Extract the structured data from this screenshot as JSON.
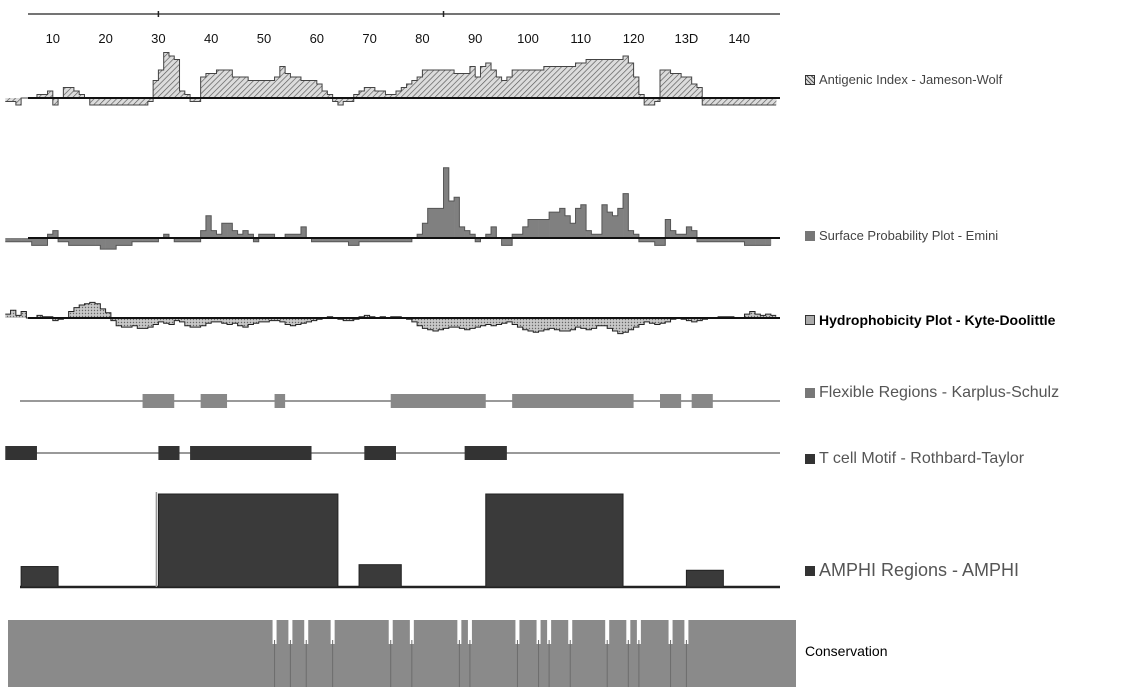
{
  "colors": {
    "hatch_fg": "#555555",
    "hatch_bg": "#dcdcdc",
    "surface": "#808080",
    "hydro": "#a8a8a8",
    "flex": "#888888",
    "tcell": "#333333",
    "amphi": "#3a3a3a",
    "conservation": "#8a8a8a"
  },
  "chart_data": {
    "type": "area",
    "x_axis": {
      "range": [
        1,
        146
      ],
      "ticks": [
        10,
        20,
        30,
        40,
        50,
        60,
        70,
        80,
        90,
        100,
        110,
        120,
        130,
        140
      ],
      "tick_labels": [
        "10",
        "20",
        "30",
        "40",
        "50",
        "60",
        "70",
        "80",
        "90",
        "100",
        "110",
        "120",
        "13D",
        "140"
      ]
    },
    "tracks": [
      {
        "id": "antigenic",
        "legend": "Antigenic Index - Jameson-Wolf",
        "style": "hatch",
        "values": [
          -0.1,
          -0.1,
          -0.2,
          0,
          0,
          0,
          0.1,
          0.1,
          0.2,
          -0.2,
          0,
          0.3,
          0.3,
          0.2,
          0.1,
          0,
          -0.2,
          -0.2,
          -0.2,
          -0.2,
          -0.2,
          -0.2,
          -0.2,
          -0.2,
          -0.2,
          -0.2,
          -0.2,
          -0.1,
          0.5,
          0.8,
          1.3,
          1.2,
          1.1,
          0.2,
          0.1,
          -0.1,
          -0.1,
          0.6,
          0.7,
          0.7,
          0.8,
          0.8,
          0.8,
          0.6,
          0.6,
          0.6,
          0.5,
          0.5,
          0.5,
          0.5,
          0.5,
          0.6,
          0.9,
          0.7,
          0.6,
          0.6,
          0.5,
          0.5,
          0.5,
          0.4,
          0.2,
          0.1,
          -0.1,
          -0.2,
          -0.1,
          -0.1,
          0.1,
          0.2,
          0.3,
          0.3,
          0.2,
          0.2,
          0.1,
          0.1,
          0.2,
          0.3,
          0.4,
          0.5,
          0.6,
          0.8,
          0.8,
          0.8,
          0.8,
          0.8,
          0.8,
          0.7,
          0.7,
          0.7,
          0.9,
          0.6,
          0.9,
          1.0,
          0.8,
          0.6,
          0.5,
          0.6,
          0.8,
          0.8,
          0.8,
          0.8,
          0.8,
          0.8,
          0.9,
          0.9,
          0.9,
          0.9,
          0.9,
          0.9,
          1.0,
          1.0,
          1.1,
          1.1,
          1.1,
          1.1,
          1.1,
          1.1,
          1.1,
          1.2,
          1.0,
          0.6,
          0.1,
          -0.2,
          -0.2,
          -0.1,
          0.8,
          0.8,
          0.7,
          0.7,
          0.6,
          0.6,
          0.4,
          0.3,
          -0.2,
          -0.2,
          -0.2,
          -0.2,
          -0.2,
          -0.2,
          -0.2,
          -0.2,
          -0.2,
          -0.2,
          -0.2,
          -0.2,
          -0.2,
          -0.2
        ]
      },
      {
        "id": "surface",
        "legend": "Surface Probability Plot - Emini",
        "style": "grey",
        "values": [
          -0.1,
          -0.1,
          -0.1,
          -0.1,
          -0.1,
          -0.2,
          -0.2,
          -0.2,
          0.1,
          0.2,
          -0.1,
          -0.1,
          -0.2,
          -0.2,
          -0.2,
          -0.2,
          -0.2,
          -0.2,
          -0.3,
          -0.3,
          -0.3,
          -0.2,
          -0.2,
          -0.2,
          -0.1,
          -0.1,
          -0.1,
          -0.1,
          -0.1,
          0,
          0.1,
          0,
          -0.1,
          -0.1,
          -0.1,
          -0.1,
          -0.1,
          0.2,
          0.6,
          0.2,
          0.1,
          0.4,
          0.4,
          0.2,
          0.1,
          0.2,
          0.1,
          -0.1,
          0.1,
          0.1,
          0.1,
          0,
          0,
          0.1,
          0.1,
          0.1,
          0.3,
          0,
          -0.1,
          -0.1,
          -0.1,
          -0.1,
          -0.1,
          -0.1,
          -0.1,
          -0.2,
          -0.2,
          -0.1,
          -0.1,
          -0.1,
          -0.1,
          -0.1,
          -0.1,
          -0.1,
          -0.1,
          -0.1,
          -0.1,
          0,
          0.1,
          0.4,
          0.8,
          0.8,
          0.8,
          1.9,
          1.0,
          1.1,
          0.3,
          0.2,
          0.1,
          -0.1,
          0,
          0.1,
          0.3,
          0,
          -0.2,
          -0.2,
          0.1,
          0.1,
          0.3,
          0.5,
          0.5,
          0.5,
          0.5,
          0.7,
          0.7,
          0.8,
          0.6,
          0.4,
          0.8,
          0.9,
          0.2,
          0.1,
          0.1,
          0.9,
          0.7,
          0.6,
          0.8,
          1.2,
          0.2,
          0.1,
          -0.1,
          -0.1,
          -0.1,
          -0.2,
          -0.2,
          0.5,
          0.2,
          0.1,
          0.1,
          0.3,
          0.2,
          -0.1,
          -0.1,
          -0.1,
          -0.1,
          -0.1,
          -0.1,
          -0.1,
          -0.1,
          -0.1,
          -0.2,
          -0.2,
          -0.2,
          -0.2,
          -0.2
        ]
      },
      {
        "id": "hydro",
        "legend": "Hydrophobicity Plot - Kyte-Doolittle",
        "style": "dot",
        "values": [
          0.3,
          0.6,
          0.2,
          0.5,
          0,
          0,
          0.2,
          0.1,
          0.1,
          -0.2,
          -0.1,
          0,
          0.5,
          0.8,
          1.0,
          1.1,
          1.2,
          1.1,
          0.7,
          0.4,
          -0.2,
          -0.6,
          -0.7,
          -0.7,
          -0.6,
          -0.8,
          -0.8,
          -0.7,
          -0.5,
          -0.3,
          -0.4,
          -0.5,
          -0.2,
          -0.3,
          -0.6,
          -0.7,
          -0.7,
          -0.6,
          -0.4,
          -0.3,
          -0.3,
          -0.4,
          -0.5,
          -0.4,
          -0.6,
          -0.7,
          -0.5,
          -0.4,
          -0.3,
          -0.3,
          -0.2,
          -0.2,
          -0.3,
          -0.5,
          -0.6,
          -0.5,
          -0.4,
          -0.3,
          -0.2,
          -0.1,
          0,
          0.1,
          0,
          -0.1,
          -0.2,
          -0.2,
          -0.1,
          0.1,
          0.2,
          0.1,
          0,
          0.1,
          0,
          0.1,
          0.1,
          0,
          -0.1,
          -0.3,
          -0.6,
          -0.8,
          -0.9,
          -1.0,
          -0.9,
          -0.8,
          -0.7,
          -0.7,
          -0.8,
          -0.9,
          -0.8,
          -0.7,
          -0.6,
          -0.5,
          -0.6,
          -0.5,
          -0.4,
          -0.3,
          -0.5,
          -0.7,
          -0.9,
          -1.0,
          -1.1,
          -1.0,
          -0.9,
          -0.8,
          -0.9,
          -1.0,
          -1.0,
          -0.9,
          -0.7,
          -0.8,
          -0.9,
          -0.8,
          -0.6,
          -0.6,
          -0.8,
          -1.0,
          -1.2,
          -1.1,
          -0.9,
          -0.7,
          -0.5,
          -0.3,
          -0.4,
          -0.5,
          -0.4,
          -0.3,
          -0.1,
          0,
          -0.1,
          -0.2,
          -0.3,
          -0.2,
          -0.1,
          0,
          0,
          0.1,
          0.1,
          0.1,
          0,
          0,
          0.3,
          0.5,
          0.3,
          0.2,
          0.3,
          0.2
        ]
      },
      {
        "id": "flexible",
        "legend": "Flexible Regions - Karplus-Schulz",
        "style": "segments",
        "segments": [
          [
            27,
            33
          ],
          [
            38,
            43
          ],
          [
            52,
            54
          ],
          [
            74,
            92
          ],
          [
            97,
            120
          ],
          [
            125,
            129
          ],
          [
            131,
            135
          ]
        ]
      },
      {
        "id": "tcell",
        "legend": "T cell Motif  - Rothbard-Taylor",
        "style": "segments",
        "segments": [
          [
            1,
            7
          ],
          [
            30,
            34
          ],
          [
            36,
            59
          ],
          [
            69,
            75
          ],
          [
            88,
            96
          ]
        ]
      },
      {
        "id": "amphi",
        "legend": "AMPHI Regions - AMPHI",
        "style": "step",
        "segments": [
          {
            "start": 4,
            "end": 11,
            "value": 0.22
          },
          {
            "start": 30,
            "end": 64,
            "value": 1.0
          },
          {
            "start": 68,
            "end": 76,
            "value": 0.24
          },
          {
            "start": 92,
            "end": 118,
            "value": 1.0
          },
          {
            "start": 130,
            "end": 137,
            "value": 0.18
          }
        ]
      },
      {
        "id": "conservation",
        "legend": "Conservation",
        "gaps": [
          52,
          55,
          58,
          63,
          74,
          78,
          87,
          89,
          98,
          102,
          104,
          108,
          115,
          119,
          121,
          127,
          130
        ]
      }
    ]
  }
}
